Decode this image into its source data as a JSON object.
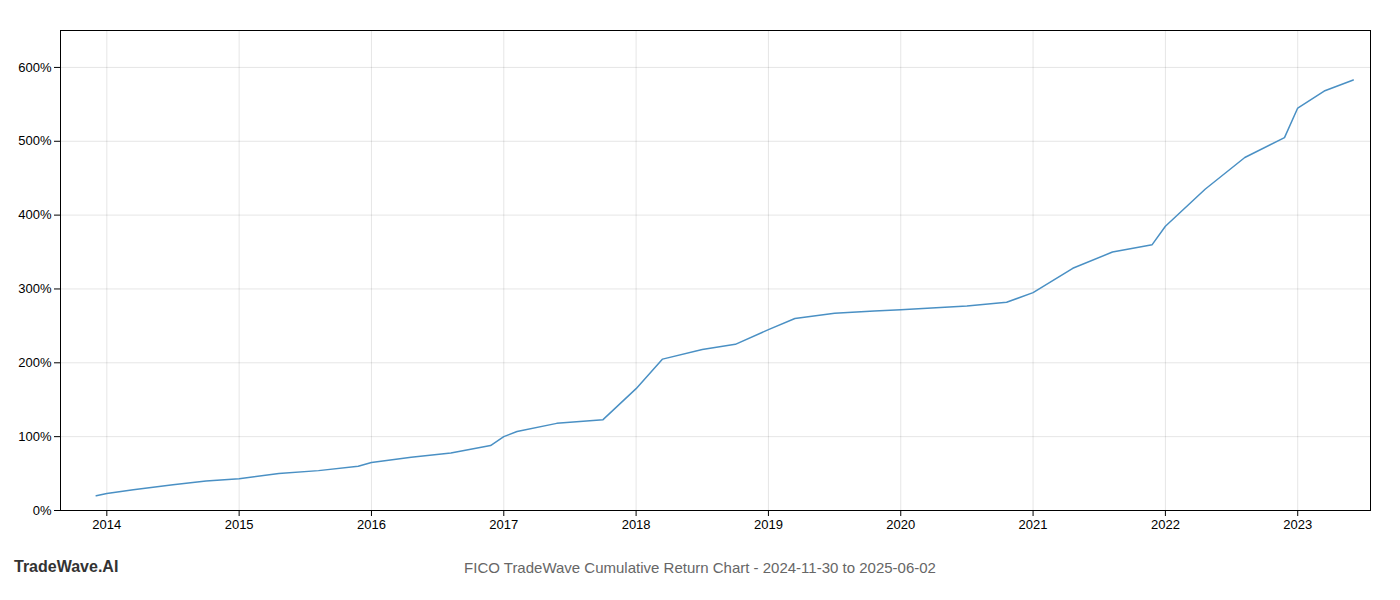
{
  "chart_data": {
    "type": "line",
    "title": "FICO TradeWave Cumulative Return Chart - 2024-11-30 to 2025-06-02",
    "annotations": [
      "TradeWave.AI"
    ],
    "x": [
      2013.92,
      2014.0,
      2014.2,
      2014.5,
      2014.75,
      2015.0,
      2015.3,
      2015.6,
      2015.9,
      2016.0,
      2016.3,
      2016.6,
      2016.9,
      2017.0,
      2017.1,
      2017.4,
      2017.75,
      2018.0,
      2018.2,
      2018.5,
      2018.75,
      2019.0,
      2019.2,
      2019.5,
      2019.8,
      2020.0,
      2020.2,
      2020.5,
      2020.8,
      2021.0,
      2021.3,
      2021.6,
      2021.9,
      2022.0,
      2022.3,
      2022.6,
      2022.9,
      2023.0,
      2023.2,
      2023.42
    ],
    "values": [
      20,
      23,
      28,
      35,
      40,
      43,
      50,
      54,
      60,
      65,
      72,
      78,
      88,
      100,
      107,
      118,
      123,
      165,
      205,
      218,
      225,
      245,
      260,
      267,
      270,
      272,
      274,
      277,
      282,
      295,
      328,
      350,
      360,
      385,
      435,
      478,
      505,
      545,
      568,
      583
    ],
    "color": "#4a90c4",
    "xlim": [
      2013.65,
      2023.55
    ],
    "xticks": [
      2014,
      2015,
      2016,
      2017,
      2018,
      2019,
      2020,
      2021,
      2022,
      2023
    ],
    "ylim": [
      0,
      650
    ],
    "yticks": [
      {
        "value": 0,
        "label": "0%"
      },
      {
        "value": 100,
        "label": "100%"
      },
      {
        "value": 200,
        "label": "200%"
      },
      {
        "value": 300,
        "label": "300%"
      },
      {
        "value": 400,
        "label": "400%"
      },
      {
        "value": 500,
        "label": "500%"
      },
      {
        "value": 600,
        "label": "600%"
      }
    ],
    "grid": true
  }
}
